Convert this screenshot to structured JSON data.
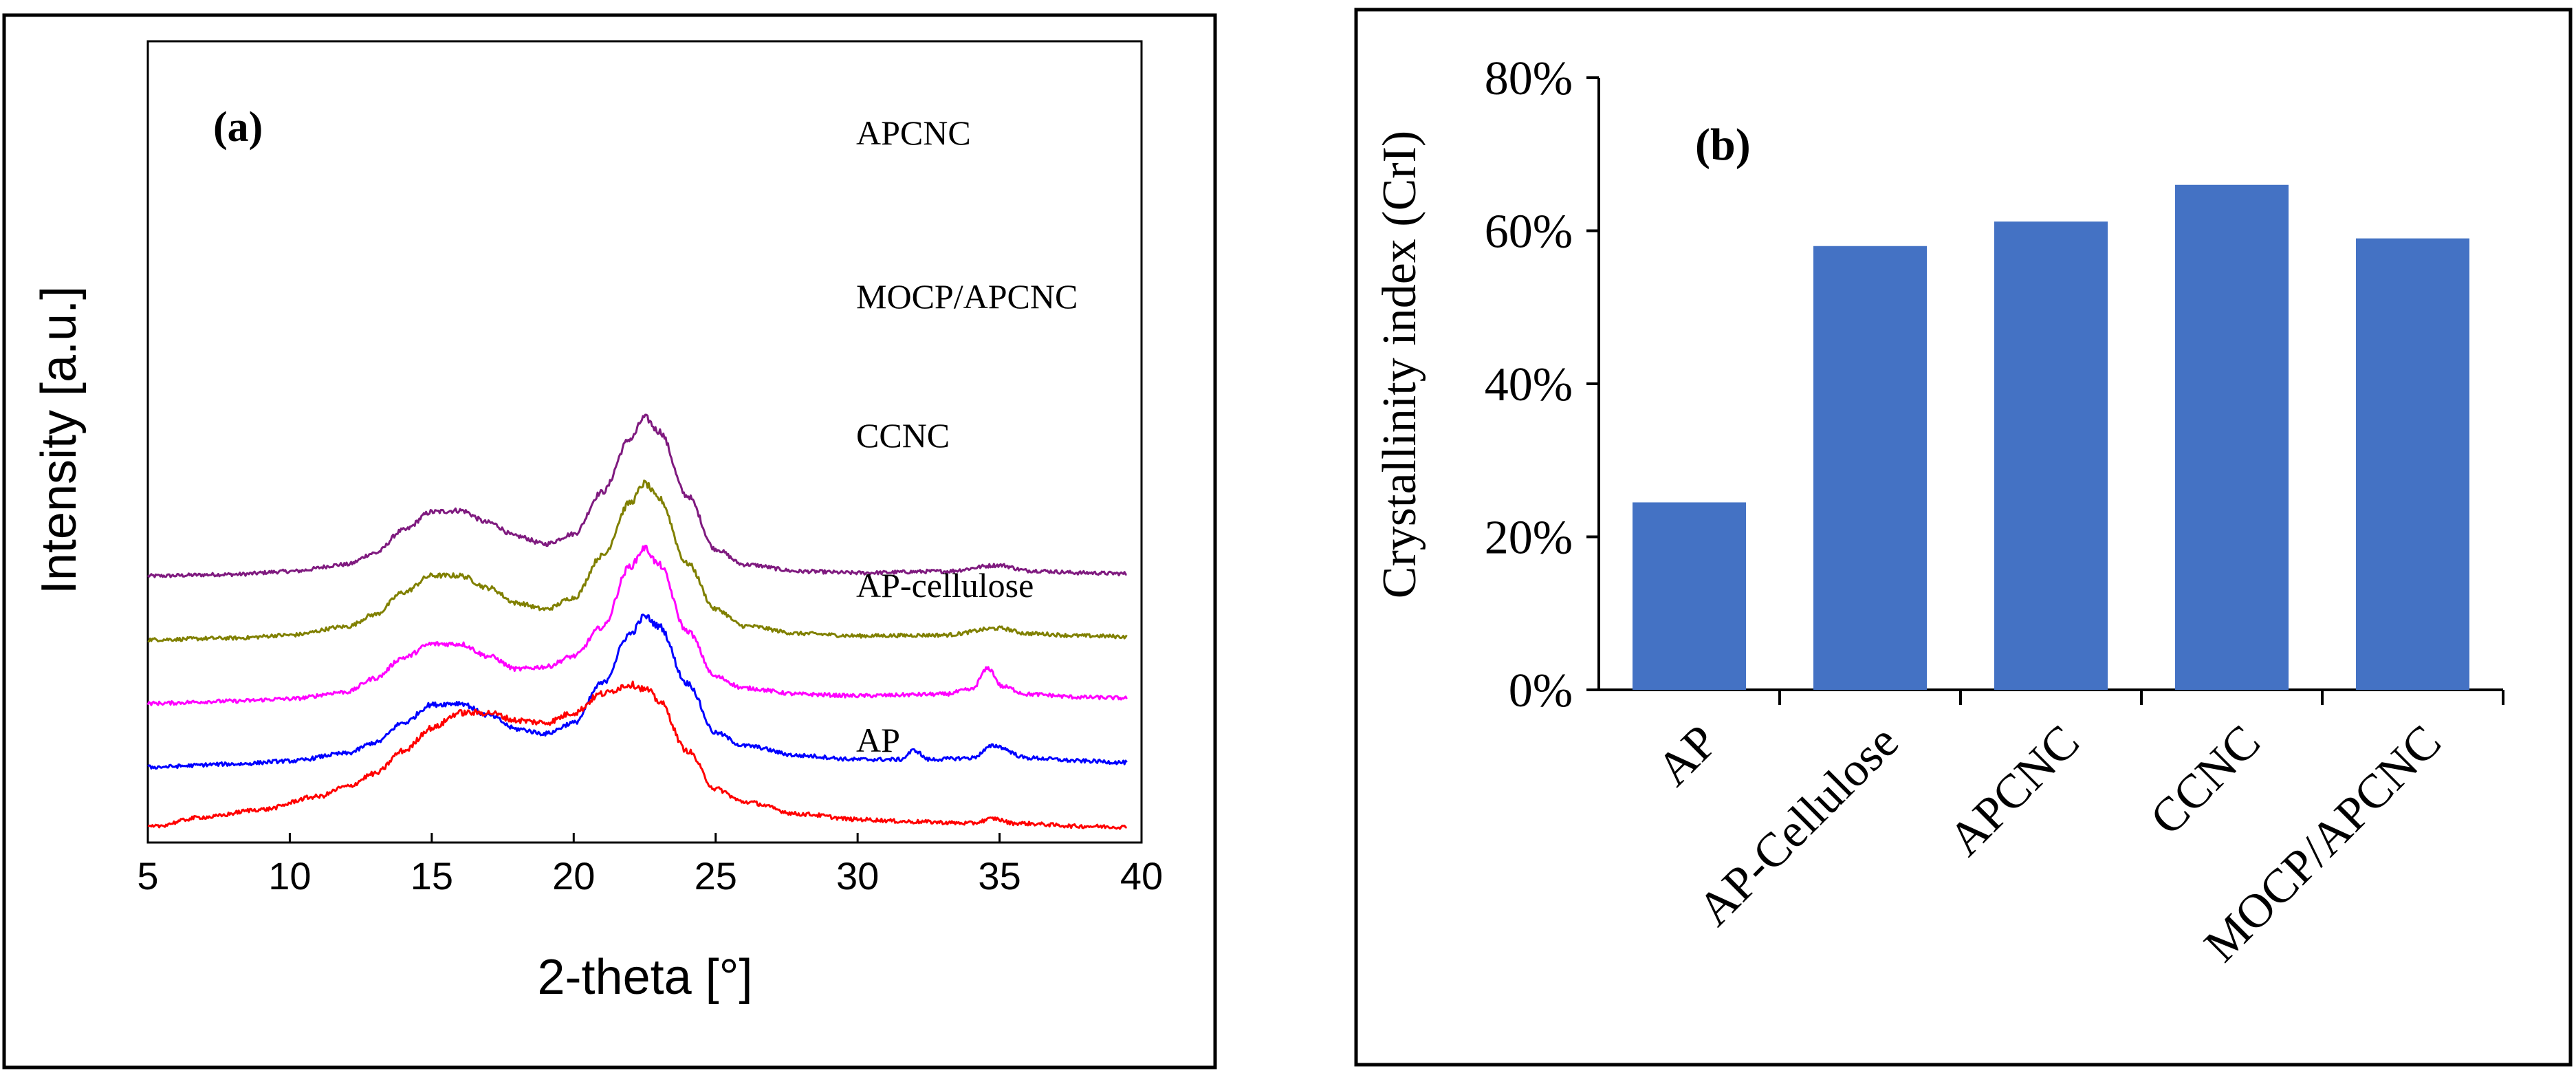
{
  "chart_data": [
    {
      "panel": "(a)",
      "type": "line",
      "panel_label_letter": "a",
      "xlabel": "2-theta [°]",
      "ylabel": "Intensity [a.u.]",
      "xlim": [
        5,
        40
      ],
      "xticks": [
        5,
        10,
        15,
        20,
        25,
        30,
        35,
        40
      ],
      "series": [
        {
          "name": "APCNC",
          "color": "#7f1a7f",
          "baseline": 4.0,
          "scale": 1.0,
          "points": [
            [
              5,
              0.0
            ],
            [
              8,
              0.02
            ],
            [
              10,
              0.06
            ],
            [
              12,
              0.15
            ],
            [
              13,
              0.3
            ],
            [
              14,
              0.6
            ],
            [
              15,
              0.84
            ],
            [
              16,
              0.86
            ],
            [
              17,
              0.7
            ],
            [
              18,
              0.52
            ],
            [
              19,
              0.42
            ],
            [
              20,
              0.55
            ],
            [
              21,
              1.1
            ],
            [
              22,
              1.8
            ],
            [
              22.5,
              2.08
            ],
            [
              23,
              1.9
            ],
            [
              24,
              1.05
            ],
            [
              25,
              0.35
            ],
            [
              26,
              0.15
            ],
            [
              28,
              0.06
            ],
            [
              30,
              0.04
            ],
            [
              33,
              0.06
            ],
            [
              35,
              0.14
            ],
            [
              36,
              0.07
            ],
            [
              38,
              0.04
            ],
            [
              39.5,
              0.03
            ]
          ]
        },
        {
          "name": "MOCP/APCNC",
          "color": "#808000",
          "baseline": 3.0,
          "scale": 1.0,
          "points": [
            [
              5,
              0.0
            ],
            [
              8,
              0.02
            ],
            [
              10,
              0.06
            ],
            [
              12,
              0.17
            ],
            [
              13,
              0.33
            ],
            [
              14,
              0.62
            ],
            [
              15,
              0.84
            ],
            [
              16,
              0.84
            ],
            [
              17,
              0.68
            ],
            [
              18,
              0.48
            ],
            [
              19,
              0.4
            ],
            [
              20,
              0.55
            ],
            [
              21,
              1.1
            ],
            [
              22,
              1.8
            ],
            [
              22.5,
              2.05
            ],
            [
              23,
              1.85
            ],
            [
              24,
              1.0
            ],
            [
              25,
              0.4
            ],
            [
              26,
              0.18
            ],
            [
              28,
              0.08
            ],
            [
              30,
              0.05
            ],
            [
              33,
              0.06
            ],
            [
              35,
              0.15
            ],
            [
              36,
              0.08
            ],
            [
              38,
              0.05
            ],
            [
              39.5,
              0.04
            ]
          ]
        },
        {
          "name": "CCNC",
          "color": "#ff00ff",
          "baseline": 2.0,
          "scale": 1.0,
          "points": [
            [
              5,
              0.0
            ],
            [
              8,
              0.03
            ],
            [
              10,
              0.06
            ],
            [
              12,
              0.15
            ],
            [
              13,
              0.33
            ],
            [
              14,
              0.6
            ],
            [
              15,
              0.78
            ],
            [
              16,
              0.78
            ],
            [
              17,
              0.62
            ],
            [
              18,
              0.45
            ],
            [
              19,
              0.48
            ],
            [
              20,
              0.62
            ],
            [
              21,
              1.0
            ],
            [
              22,
              1.8
            ],
            [
              22.5,
              2.04
            ],
            [
              23,
              1.82
            ],
            [
              24,
              0.95
            ],
            [
              25,
              0.35
            ],
            [
              26,
              0.2
            ],
            [
              28,
              0.12
            ],
            [
              30,
              0.1
            ],
            [
              33,
              0.12
            ],
            [
              34,
              0.18
            ],
            [
              34.6,
              0.46
            ],
            [
              35.1,
              0.22
            ],
            [
              36,
              0.12
            ],
            [
              38,
              0.08
            ],
            [
              39.5,
              0.07
            ]
          ]
        },
        {
          "name": "AP-cellulose",
          "color": "#0000ff",
          "baseline": 1.0,
          "scale": 1.0,
          "points": [
            [
              5,
              0.0
            ],
            [
              8,
              0.04
            ],
            [
              10,
              0.08
            ],
            [
              12,
              0.18
            ],
            [
              13,
              0.32
            ],
            [
              14,
              0.58
            ],
            [
              15,
              0.82
            ],
            [
              16,
              0.84
            ],
            [
              17,
              0.68
            ],
            [
              18,
              0.5
            ],
            [
              19,
              0.44
            ],
            [
              20,
              0.58
            ],
            [
              21,
              1.1
            ],
            [
              22,
              1.75
            ],
            [
              22.5,
              1.98
            ],
            [
              23,
              1.85
            ],
            [
              24,
              1.1
            ],
            [
              25,
              0.45
            ],
            [
              26,
              0.28
            ],
            [
              28,
              0.15
            ],
            [
              30,
              0.1
            ],
            [
              31.5,
              0.1
            ],
            [
              32,
              0.22
            ],
            [
              32.5,
              0.1
            ],
            [
              34,
              0.12
            ],
            [
              34.8,
              0.28
            ],
            [
              36,
              0.12
            ],
            [
              38,
              0.08
            ],
            [
              39.5,
              0.06
            ]
          ]
        },
        {
          "name": "AP",
          "color": "#ff0000",
          "baseline": 0.0,
          "scale": 1.0,
          "points": [
            [
              5,
              0.05
            ],
            [
              7,
              0.18
            ],
            [
              9,
              0.28
            ],
            [
              11,
              0.45
            ],
            [
              12,
              0.58
            ],
            [
              13,
              0.75
            ],
            [
              14,
              1.05
            ],
            [
              15,
              1.35
            ],
            [
              16,
              1.55
            ],
            [
              17,
              1.55
            ],
            [
              18,
              1.45
            ],
            [
              19,
              1.42
            ],
            [
              20,
              1.55
            ],
            [
              21,
              1.8
            ],
            [
              22,
              1.92
            ],
            [
              22.6,
              1.85
            ],
            [
              23,
              1.7
            ],
            [
              24,
              1.05
            ],
            [
              25,
              0.55
            ],
            [
              26,
              0.38
            ],
            [
              28,
              0.22
            ],
            [
              30,
              0.15
            ],
            [
              32,
              0.12
            ],
            [
              34,
              0.1
            ],
            [
              34.8,
              0.16
            ],
            [
              35.5,
              0.1
            ],
            [
              38,
              0.06
            ],
            [
              39.5,
              0.05
            ]
          ]
        }
      ]
    },
    {
      "panel": "(b)",
      "type": "bar",
      "panel_label_letter": "b",
      "ylabel": "Crystallinity index (CrI)",
      "ylim": [
        0,
        80
      ],
      "yticks": [
        "0%",
        "20%",
        "40%",
        "60%",
        "80%"
      ],
      "ytick_values": [
        0,
        20,
        40,
        60,
        80
      ],
      "categories": [
        "AP",
        "AP-Cellulose",
        "APCNC",
        "CCNC",
        "MOCP/APCNC"
      ],
      "values": [
        24.5,
        58.0,
        61.2,
        66.0,
        59.0
      ],
      "unit": "%",
      "bar_color": "#4472c4"
    }
  ]
}
